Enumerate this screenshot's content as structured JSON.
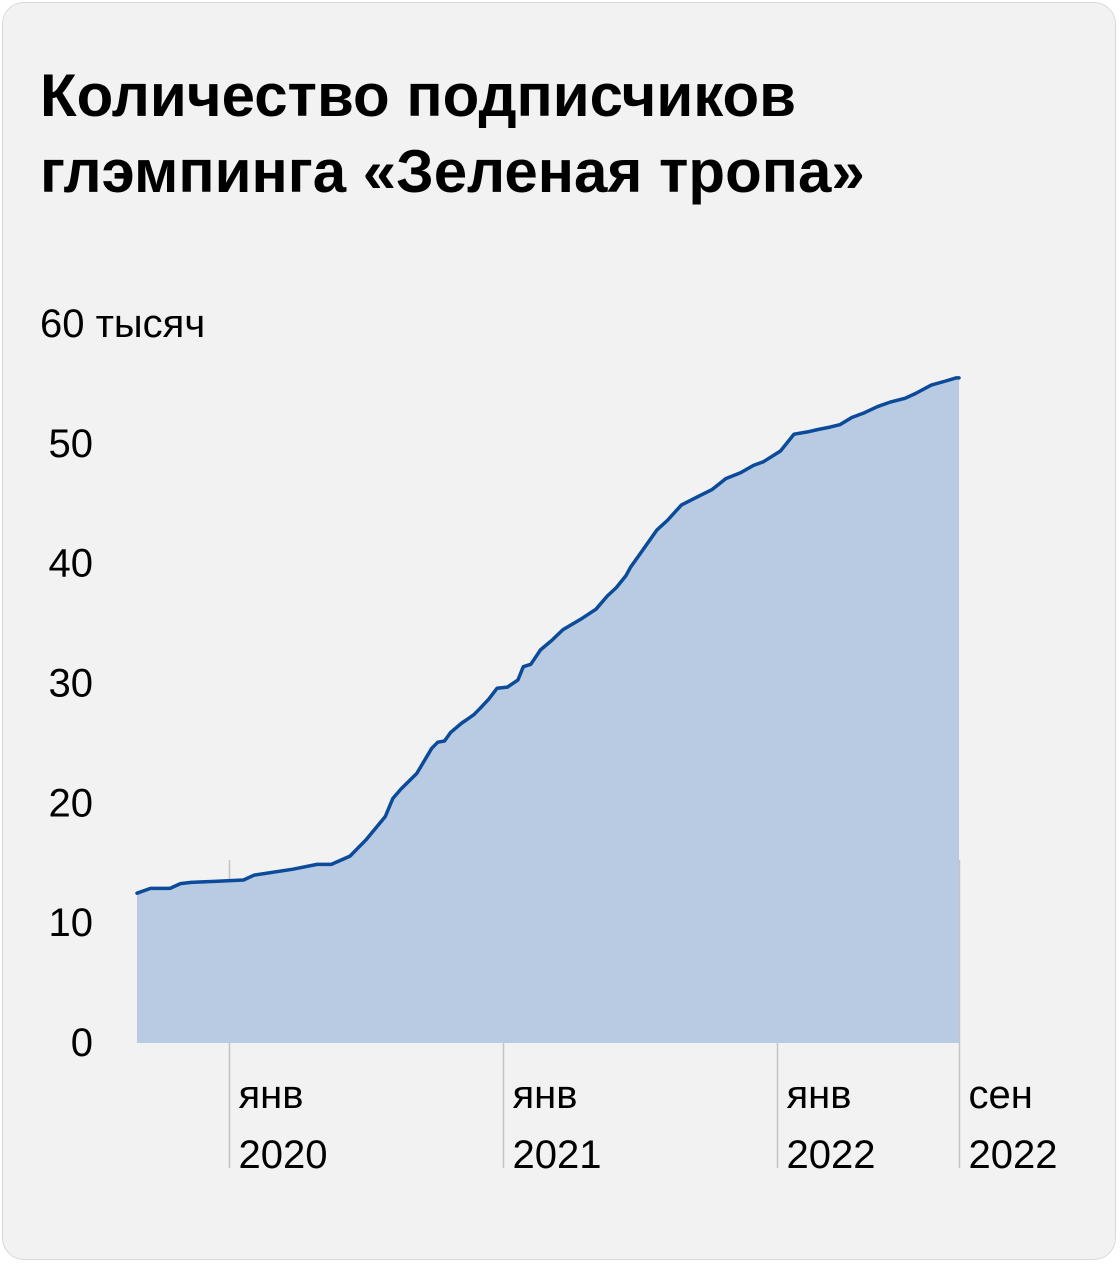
{
  "chart_data": {
    "type": "area",
    "title": "Количество подписчиков глэмпинга «Зеленая тропа»",
    "title_lines": [
      "Количество подписчиков",
      "глэмпинга «Зеленая тропа»"
    ],
    "xlabel": "",
    "ylabel": "",
    "y_unit_label": "60 тысяч",
    "ylim": [
      0,
      60
    ],
    "y_ticks": [
      {
        "value": 0,
        "label": "0"
      },
      {
        "value": 10,
        "label": "10"
      },
      {
        "value": 20,
        "label": "20"
      },
      {
        "value": 30,
        "label": "30"
      },
      {
        "value": 40,
        "label": "40"
      },
      {
        "value": 50,
        "label": "50"
      },
      {
        "value": 60,
        "label": "60"
      }
    ],
    "xlim": [
      "2019-09-01",
      "2022-09-01"
    ],
    "x_ticks": [
      {
        "date": "2020-01-01",
        "line1": "янв",
        "line2": "2020"
      },
      {
        "date": "2021-01-01",
        "line1": "янв",
        "line2": "2021"
      },
      {
        "date": "2022-01-01",
        "line1": "янв",
        "line2": "2022"
      },
      {
        "date": "2022-09-01",
        "line1": "сен",
        "line2": "2022"
      }
    ],
    "grid": false,
    "colors": {
      "line": "#0b4b9a",
      "fill": "#b9cbe3",
      "guide": "#c4c4c4",
      "background": "#f2f2f2"
    },
    "series": [
      {
        "x": [
          "2019-09-01",
          "2019-09-19",
          "2019-10-15",
          "2019-10-29",
          "2019-11-12",
          "2019-12-17",
          "2020-01-21",
          "2020-02-04",
          "2020-03-27",
          "2020-04-28",
          "2020-05-17",
          "2020-06-11",
          "2020-07-03",
          "2020-07-28",
          "2020-08-07",
          "2020-08-18",
          "2020-09-08",
          "2020-09-28",
          "2020-10-06",
          "2020-10-15",
          "2020-10-23",
          "2020-11-07",
          "2020-11-14",
          "2020-11-23",
          "2020-12-01",
          "2020-12-13",
          "2020-12-24",
          "2021-01-07",
          "2021-01-21",
          "2021-01-28",
          "2021-02-07",
          "2021-02-20",
          "2021-03-07",
          "2021-03-22",
          "2021-04-10",
          "2021-04-18",
          "2021-05-05",
          "2021-05-20",
          "2021-06-01",
          "2021-06-14",
          "2021-06-20",
          "2021-07-07",
          "2021-07-25",
          "2021-08-08",
          "2021-08-27",
          "2021-09-18",
          "2021-10-07",
          "2021-10-25",
          "2021-11-14",
          "2021-12-01",
          "2021-12-14",
          "2022-01-06",
          "2022-01-24",
          "2022-02-11",
          "2022-02-25",
          "2022-03-13",
          "2022-03-26",
          "2022-04-11",
          "2022-04-28",
          "2022-05-15",
          "2022-06-02",
          "2022-06-21",
          "2022-07-05",
          "2022-07-26",
          "2022-08-12",
          "2022-08-28",
          "2022-09-01"
        ],
        "values": [
          12.5,
          12.9,
          12.9,
          13.3,
          13.4,
          13.5,
          13.6,
          14.0,
          14.5,
          14.9,
          14.9,
          15.6,
          17.0,
          18.9,
          20.4,
          21.2,
          22.5,
          24.6,
          25.1,
          25.2,
          25.9,
          26.7,
          27.0,
          27.4,
          27.9,
          28.7,
          29.6,
          29.7,
          30.3,
          31.4,
          31.6,
          32.8,
          33.6,
          34.5,
          35.2,
          35.5,
          36.2,
          37.3,
          38.0,
          39.0,
          39.7,
          41.2,
          42.8,
          43.6,
          44.9,
          45.6,
          46.2,
          47.1,
          47.6,
          48.2,
          48.5,
          49.4,
          50.8,
          51.0,
          51.2,
          51.4,
          51.6,
          52.2,
          52.6,
          53.1,
          53.5,
          53.8,
          54.2,
          54.9,
          55.2,
          55.5,
          55.5
        ]
      }
    ]
  }
}
